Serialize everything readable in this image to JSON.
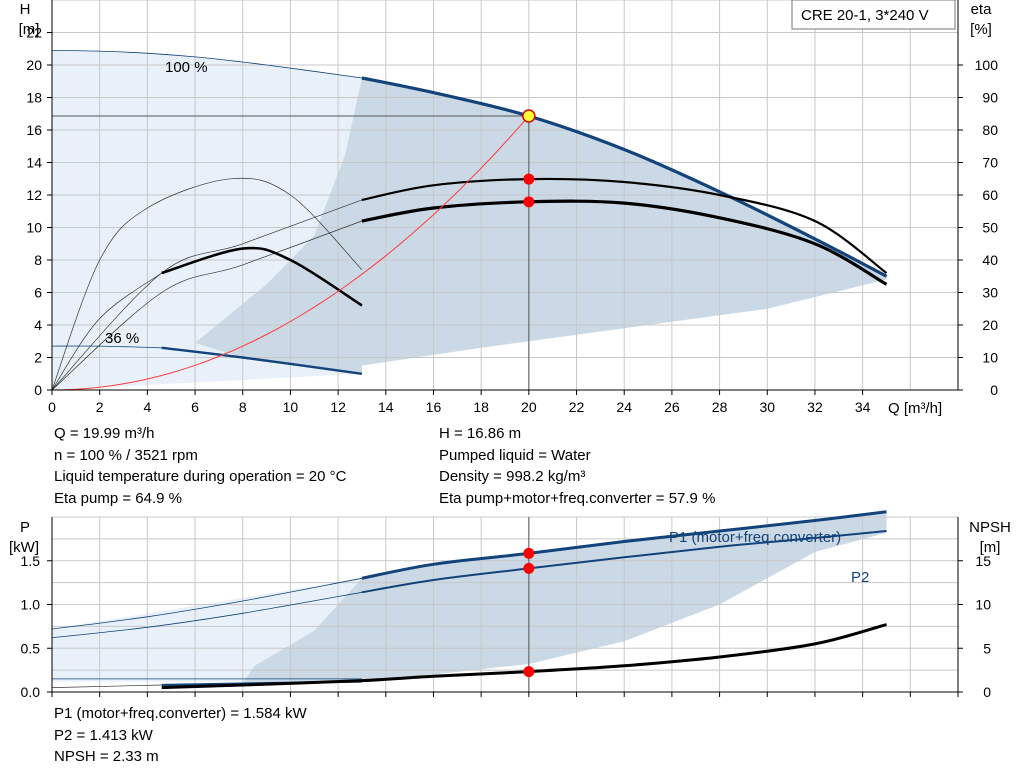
{
  "header": {
    "model": "CRE 20-1, 3*240 V"
  },
  "chart_data": [
    {
      "type": "line",
      "y_label": "H",
      "y_unit": "[m]",
      "y2_label": "eta",
      "y2_unit": "[%]",
      "x_label": "Q [m³/h]",
      "xlim": [
        0,
        38
      ],
      "ylim": [
        0,
        24
      ],
      "y2lim": [
        0,
        120
      ],
      "x_ticks": [
        "0",
        "2",
        "4",
        "6",
        "8",
        "10",
        "12",
        "14",
        "16",
        "18",
        "20",
        "22",
        "24",
        "26",
        "28",
        "30",
        "32",
        "34"
      ],
      "y_ticks": [
        "0",
        "2",
        "4",
        "6",
        "8",
        "10",
        "12",
        "14",
        "16",
        "18",
        "20",
        "22"
      ],
      "y2_ticks": [
        "0",
        "10",
        "20",
        "30",
        "40",
        "50",
        "60",
        "70",
        "80",
        "90",
        "100"
      ],
      "speed_labels": {
        "max": "100 %",
        "min": "36 %"
      },
      "series": [
        {
          "role": "head_100",
          "x": [
            0,
            3,
            6,
            9,
            13,
            16,
            20,
            24,
            28,
            32,
            35
          ],
          "y": [
            20.9,
            20.8,
            20.5,
            20.0,
            19.2,
            18.3,
            16.86,
            14.8,
            12.2,
            9.3,
            7.0
          ]
        },
        {
          "role": "head_min",
          "x": [
            0,
            2,
            4.6,
            8,
            13
          ],
          "y": [
            2.7,
            2.7,
            2.6,
            2.0,
            1.0
          ]
        },
        {
          "role": "eta_pump",
          "x": [
            0,
            4.6,
            8,
            13,
            16,
            20,
            24,
            28,
            32,
            35
          ],
          "y": [
            0,
            36,
            45,
            58.5,
            63,
            64.9,
            64,
            60,
            52,
            36
          ]
        },
        {
          "role": "eta_total",
          "x": [
            0,
            4.6,
            8,
            13,
            16,
            20,
            24,
            28,
            32,
            35
          ],
          "y": [
            0,
            30,
            38.5,
            52,
            56,
            57.9,
            57.5,
            53,
            45,
            32.5
          ]
        },
        {
          "role": "eta_pump_min",
          "x": [
            0,
            2,
            4,
            7.5,
            10,
            13
          ],
          "y": [
            0,
            40,
            56,
            65,
            60,
            37
          ]
        },
        {
          "role": "eta_total_min",
          "x": [
            0,
            2,
            4.6,
            8,
            10,
            13
          ],
          "y": [
            0,
            22,
            36,
            43.5,
            40,
            26
          ]
        },
        {
          "role": "system_curve",
          "x": [
            0,
            5,
            10,
            15,
            20
          ],
          "y": [
            0,
            1.05,
            4.2,
            9.5,
            16.86
          ]
        }
      ],
      "duty_point": {
        "q": 20,
        "h": 16.86,
        "eta_pump": 64.9,
        "eta_total": 57.9
      }
    },
    {
      "type": "line",
      "y_label": "P",
      "y_unit": "[kW]",
      "y2_label": "NPSH",
      "y2_unit": "[m]",
      "xlim": [
        0,
        38
      ],
      "ylim": [
        0,
        2.0
      ],
      "y2lim": [
        0,
        20
      ],
      "y_ticks": [
        "0.0",
        "0.5",
        "1.0",
        "1.5"
      ],
      "y2_ticks": [
        "0",
        "5",
        "10",
        "15"
      ],
      "series": [
        {
          "name": "P1 (motor+freq.converter)",
          "x": [
            0,
            4,
            8,
            13,
            16,
            20,
            24,
            28,
            32,
            35
          ],
          "y": [
            0.72,
            0.86,
            1.04,
            1.3,
            1.46,
            1.584,
            1.72,
            1.84,
            1.96,
            2.06
          ]
        },
        {
          "name": "P2",
          "x": [
            0,
            4,
            8,
            13,
            16,
            20,
            24,
            28,
            32,
            35
          ],
          "y": [
            0.62,
            0.74,
            0.9,
            1.14,
            1.28,
            1.413,
            1.54,
            1.66,
            1.76,
            1.84
          ]
        },
        {
          "role": "npsh",
          "x": [
            0,
            4.6,
            8,
            13,
            16,
            20,
            24,
            28,
            32,
            35
          ],
          "y": [
            0.3,
            0.5,
            0.8,
            1.3,
            1.8,
            2.33,
            3.0,
            4.0,
            5.5,
            7.7
          ]
        }
      ],
      "duty_point": {
        "q": 20,
        "p1": 1.584,
        "p2": 1.413,
        "npsh": 2.33
      }
    }
  ],
  "duty_info": {
    "q": "Q = 19.99 m³/h",
    "n": "n = 100 % / 3521 rpm",
    "liquid_temp": "Liquid temperature during operation = 20 °C",
    "eta_pump": "Eta pump = 64.9 %",
    "h": "H = 16.86 m",
    "pumped_liquid": "Pumped liquid = Water",
    "density": "Density = 998.2 kg/m³",
    "eta_total": "Eta pump+motor+freq.converter = 57.9 %"
  },
  "power_info": {
    "p1": "P1 (motor+freq.converter) = 1.584 kW",
    "p2": "P2 = 1.413 kW",
    "npsh": "NPSH = 2.33 m"
  },
  "colors": {
    "head": "#12437a",
    "area": "#cbd9e6",
    "area_light": "#e8f1fa",
    "eta": "#000000",
    "system": "#ff3b3b",
    "duty": "#ff0000",
    "duty_yellow": "#ffff33",
    "grid": "#c8c8c8"
  }
}
